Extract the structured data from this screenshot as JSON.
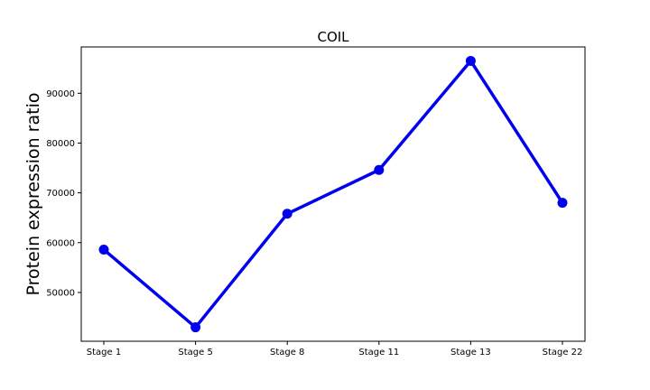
{
  "chart_data": {
    "type": "line",
    "title": "COIL",
    "xlabel": "",
    "ylabel": "Protein expression ratio",
    "categories": [
      "Stage 1",
      "Stage 5",
      "Stage 8",
      "Stage 11",
      "Stage 13",
      "Stage 22"
    ],
    "series": [
      {
        "values": [
          58600,
          43000,
          65800,
          74600,
          96500,
          68000
        ],
        "color": "#0000ee"
      }
    ],
    "yticks": [
      50000,
      60000,
      70000,
      80000,
      90000
    ],
    "ylim": [
      40200,
      99300
    ],
    "grid": false,
    "legend": false
  }
}
